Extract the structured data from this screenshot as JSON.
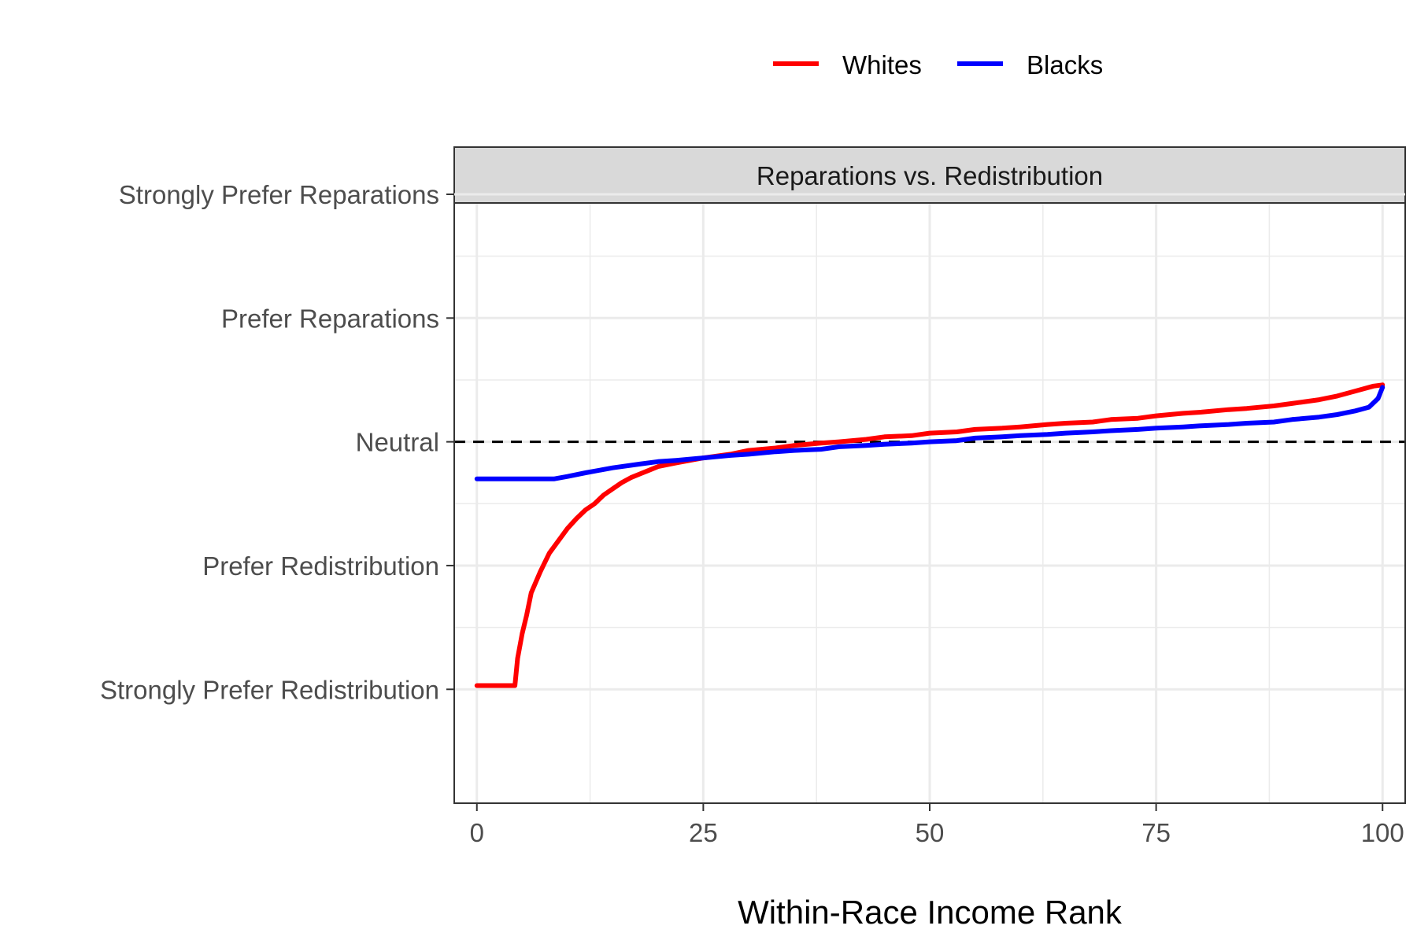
{
  "chart_data": {
    "type": "line",
    "title": "",
    "facet_label": "Reparations vs. Redistribution",
    "xlabel": "Within-Race Income Rank",
    "ylabel": "",
    "xlim": [
      -2.5,
      102.5
    ],
    "ylim": [
      -0.92,
      3.93
    ],
    "x_ticks": [
      0,
      25,
      50,
      75,
      100
    ],
    "x_tick_labels": [
      "0",
      "25",
      "50",
      "75",
      "100"
    ],
    "y_ticks": [
      0,
      1,
      2,
      3,
      4
    ],
    "y_tick_labels": [
      "Strongly Prefer Redistribution",
      "Prefer Redistribution",
      "Neutral",
      "Prefer Reparations",
      "Strongly Prefer Reparations"
    ],
    "reference_line": {
      "y": 2,
      "style": "dashed",
      "color": "#000000"
    },
    "grid": true,
    "legend": {
      "position": "top"
    },
    "series": [
      {
        "name": "Whites",
        "color": "#ff0000",
        "x": [
          0,
          2,
          4.2,
          4.5,
          5,
          5.5,
          6,
          7,
          8,
          9,
          10,
          11,
          12,
          13,
          14,
          15,
          16,
          17,
          18,
          19,
          20,
          22,
          25,
          28,
          30,
          33,
          35,
          38,
          40,
          43,
          45,
          48,
          50,
          53,
          55,
          58,
          60,
          63,
          65,
          68,
          70,
          73,
          75,
          78,
          80,
          83,
          85,
          88,
          90,
          93,
          95,
          97,
          99,
          100
        ],
        "y": [
          0.03,
          0.03,
          0.03,
          0.25,
          0.45,
          0.6,
          0.78,
          0.95,
          1.1,
          1.2,
          1.3,
          1.38,
          1.45,
          1.5,
          1.57,
          1.62,
          1.67,
          1.71,
          1.74,
          1.77,
          1.8,
          1.83,
          1.87,
          1.9,
          1.93,
          1.95,
          1.97,
          1.99,
          2.0,
          2.02,
          2.04,
          2.05,
          2.07,
          2.08,
          2.1,
          2.11,
          2.12,
          2.14,
          2.15,
          2.16,
          2.18,
          2.19,
          2.21,
          2.23,
          2.24,
          2.26,
          2.27,
          2.29,
          2.31,
          2.34,
          2.37,
          2.41,
          2.45,
          2.46
        ]
      },
      {
        "name": "Blacks",
        "color": "#0000ff",
        "x": [
          0,
          3,
          6,
          8.5,
          10,
          12,
          15,
          18,
          20,
          22,
          25,
          28,
          30,
          33,
          35,
          38,
          40,
          43,
          45,
          48,
          50,
          53,
          55,
          58,
          60,
          63,
          65,
          68,
          70,
          73,
          75,
          78,
          80,
          83,
          85,
          88,
          90,
          93,
          95,
          97,
          98.5,
          99.5,
          100
        ],
        "y": [
          1.7,
          1.7,
          1.7,
          1.7,
          1.72,
          1.75,
          1.79,
          1.82,
          1.84,
          1.85,
          1.87,
          1.89,
          1.9,
          1.92,
          1.93,
          1.94,
          1.96,
          1.97,
          1.98,
          1.99,
          2.0,
          2.01,
          2.03,
          2.04,
          2.05,
          2.06,
          2.07,
          2.08,
          2.09,
          2.1,
          2.11,
          2.12,
          2.13,
          2.14,
          2.15,
          2.16,
          2.18,
          2.2,
          2.22,
          2.25,
          2.28,
          2.35,
          2.44
        ]
      }
    ]
  }
}
